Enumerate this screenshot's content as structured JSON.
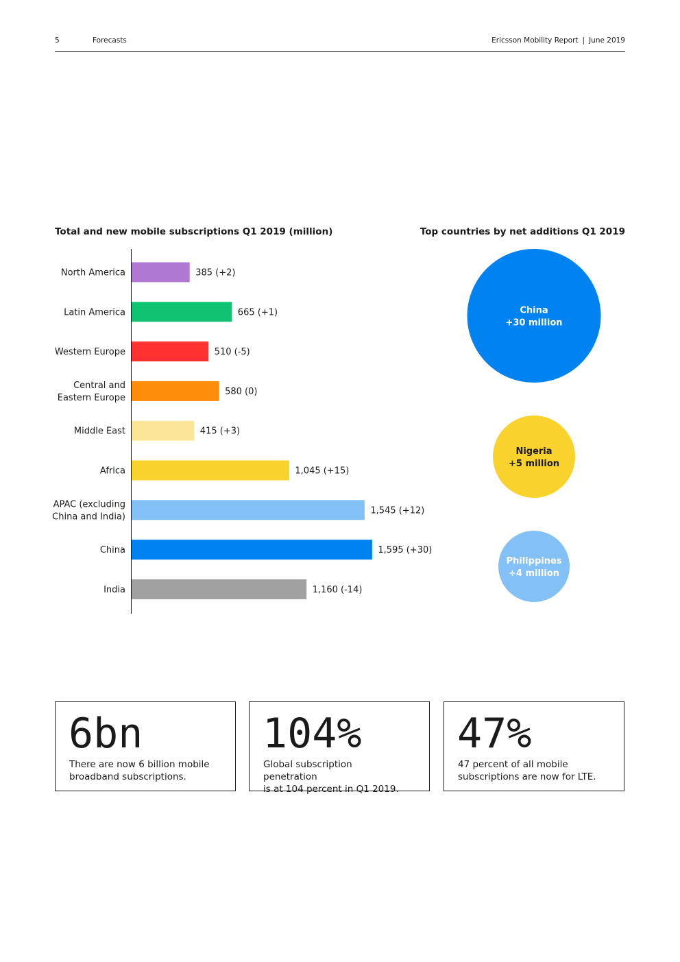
{
  "header": {
    "page_number": "5",
    "section": "Forecasts",
    "report": "Ericsson Mobility Report",
    "date": "June 2019"
  },
  "chart_data": [
    {
      "type": "bar",
      "orientation": "horizontal",
      "title": "Total and new mobile subscriptions Q1 2019 (million)",
      "categories": [
        [
          "North America"
        ],
        [
          "Latin America"
        ],
        [
          "Western Europe"
        ],
        [
          "Central and",
          "Eastern Europe"
        ],
        [
          "Middle East"
        ],
        [
          "Africa"
        ],
        [
          "APAC (excluding",
          "China and India)"
        ],
        [
          "China"
        ],
        [
          "India"
        ]
      ],
      "values": [
        385,
        665,
        510,
        580,
        415,
        1045,
        1545,
        1595,
        1160
      ],
      "changes": [
        2,
        1,
        -5,
        0,
        3,
        15,
        12,
        30,
        -14
      ],
      "data_labels": [
        "385 (+2)",
        "665 (+1)",
        "510 (-5)",
        "580 (0)",
        "415 (+3)",
        "1,045 (+15)",
        "1,545 (+12)",
        "1,595 (+30)",
        "1,160 (-14)"
      ],
      "colors": [
        "#af78d2",
        "#0fc373",
        "#ff3232",
        "#ff8c0a",
        "#fae696",
        "#fad22d",
        "#82c0f5",
        "#0082f0",
        "#a0a0a0"
      ],
      "xlim": [
        0,
        1600
      ]
    },
    {
      "type": "bubble",
      "title": "Top countries by net additions Q1 2019",
      "items": [
        {
          "country": "China",
          "value": 30,
          "label": "+30 million",
          "color": "#0082f0",
          "text_color": "#ffffff"
        },
        {
          "country": "Nigeria",
          "value": 5,
          "label": "+5 million",
          "color": "#fad22d",
          "text_color": "#1a1a1a"
        },
        {
          "country": "Philippines",
          "value": 4,
          "label": "+4 million",
          "color": "#82c0f5",
          "text_color": "#ffffff"
        }
      ]
    }
  ],
  "stats": [
    {
      "big": "6bn",
      "line1": "There are now 6 billion mobile",
      "line2": "broadband subscriptions."
    },
    {
      "big": "104%",
      "line1": "Global subscription penetration",
      "line2": "is at 104 percent in Q1 2019."
    },
    {
      "big": "47%",
      "line1": "47 percent of all mobile",
      "line2": "subscriptions are now for LTE."
    }
  ]
}
